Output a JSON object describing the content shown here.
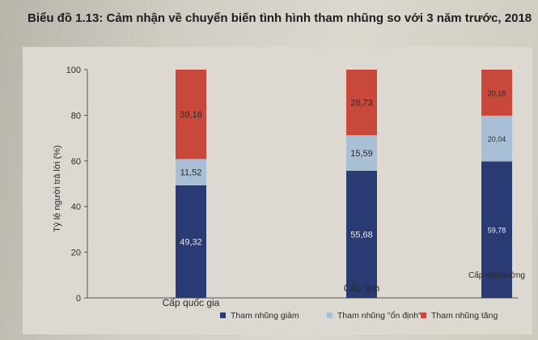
{
  "chart_data": {
    "type": "bar",
    "stacked": true,
    "title": "Biểu đồ 1.13: Cảm nhận về chuyển biến tình hình tham nhũng so với 3 năm trước, 2018",
    "ylabel": "Tỷ lệ người trả lời (%)",
    "xlabel": "",
    "ylim": [
      0,
      100
    ],
    "yticks": [
      "0",
      "20",
      "40",
      "60",
      "80",
      "100"
    ],
    "categories": [
      "Cấp quốc gia",
      "Cấp tỉnh",
      "Cấp xã/phường"
    ],
    "series": [
      {
        "name": "Tham nhũng giảm",
        "color": "#2a3a73",
        "values": [
          49.32,
          55.68,
          59.78
        ],
        "labels": [
          "49,32",
          "55,68",
          "59,78"
        ]
      },
      {
        "name": "Tham nhũng \"ổn định\"",
        "color": "#a9bfd6",
        "values": [
          11.52,
          15.59,
          20.04
        ],
        "labels": [
          "11,52",
          "15,59",
          "20,04"
        ]
      },
      {
        "name": "Tham nhũng tăng",
        "color": "#c8493c",
        "values": [
          39.16,
          28.73,
          20.18
        ],
        "labels": [
          "39,16",
          "28,73",
          "20,18"
        ]
      }
    ],
    "legend_position": "bottom"
  }
}
